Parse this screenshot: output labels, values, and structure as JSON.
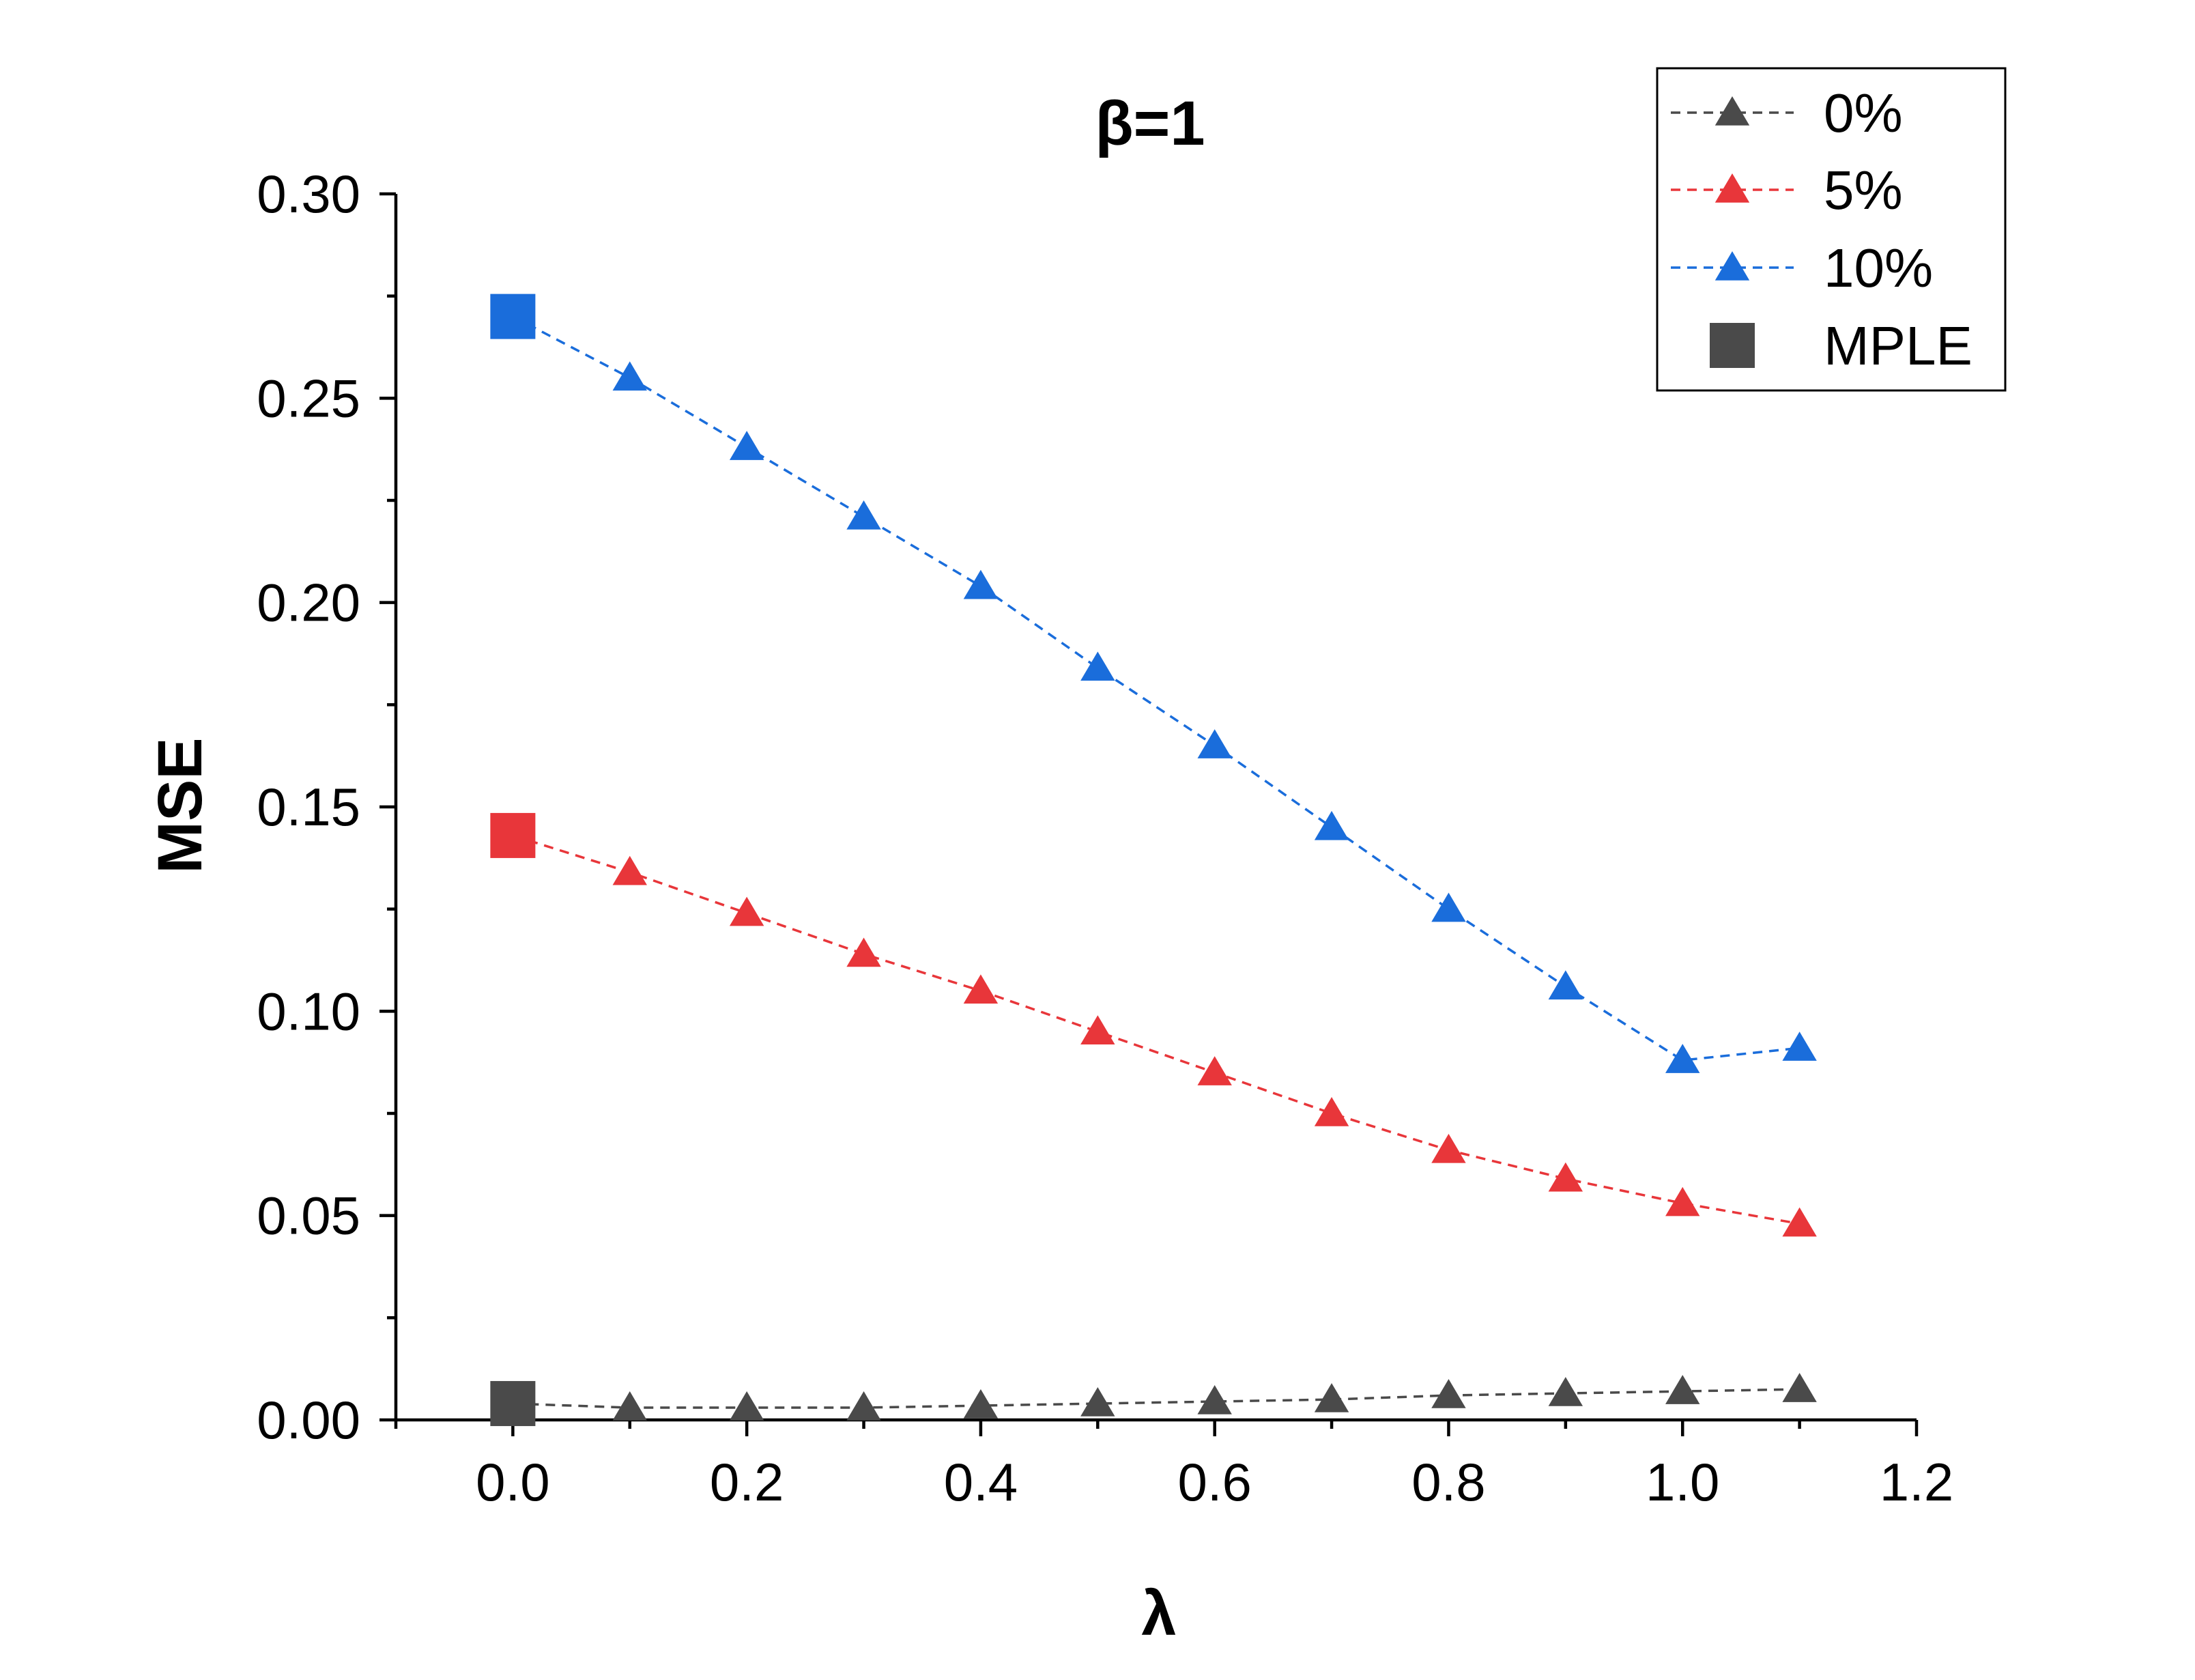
{
  "chart_data": {
    "type": "line",
    "title": "β=1",
    "xlabel": "λ",
    "ylabel": "MSE",
    "xlim": [
      -0.1,
      1.2
    ],
    "ylim": [
      0.0,
      0.3
    ],
    "xticks": [
      "0.0",
      "0.2",
      "0.4",
      "0.6",
      "0.8",
      "1.0",
      "1.2"
    ],
    "yticks": [
      "0.00",
      "0.05",
      "0.10",
      "0.15",
      "0.20",
      "0.25",
      "0.30"
    ],
    "xtick_values": [
      0.0,
      0.2,
      0.4,
      0.6,
      0.8,
      1.0,
      1.2
    ],
    "ytick_values": [
      0.0,
      0.05,
      0.1,
      0.15,
      0.2,
      0.25,
      0.3
    ],
    "legend_position": "top-right",
    "x": [
      0.1,
      0.2,
      0.3,
      0.4,
      0.5,
      0.6,
      0.7,
      0.8,
      0.9,
      1.0,
      1.1
    ],
    "series": [
      {
        "name": "0%",
        "color": "#4a4a4a",
        "marker": "triangle",
        "values": [
          0.003,
          0.003,
          0.003,
          0.0035,
          0.004,
          0.0045,
          0.005,
          0.006,
          0.0065,
          0.007,
          0.0075
        ]
      },
      {
        "name": "5%",
        "color": "#e8363a",
        "marker": "triangle",
        "values": [
          0.134,
          0.124,
          0.114,
          0.105,
          0.095,
          0.085,
          0.075,
          0.066,
          0.059,
          0.053,
          0.048
        ]
      },
      {
        "name": "10%",
        "color": "#1a6ddb",
        "marker": "triangle",
        "values": [
          0.255,
          0.238,
          0.221,
          0.204,
          0.184,
          0.165,
          0.145,
          0.125,
          0.106,
          0.088,
          0.091
        ]
      }
    ],
    "mple": {
      "name": "MPLE",
      "x": 0.0,
      "marker": "square",
      "legend_color": "#4a4a4a",
      "points": [
        {
          "series": "0%",
          "value": 0.004,
          "color": "#4a4a4a"
        },
        {
          "series": "5%",
          "value": 0.143,
          "color": "#e8363a"
        },
        {
          "series": "10%",
          "value": 0.27,
          "color": "#1a6ddb"
        }
      ]
    }
  }
}
